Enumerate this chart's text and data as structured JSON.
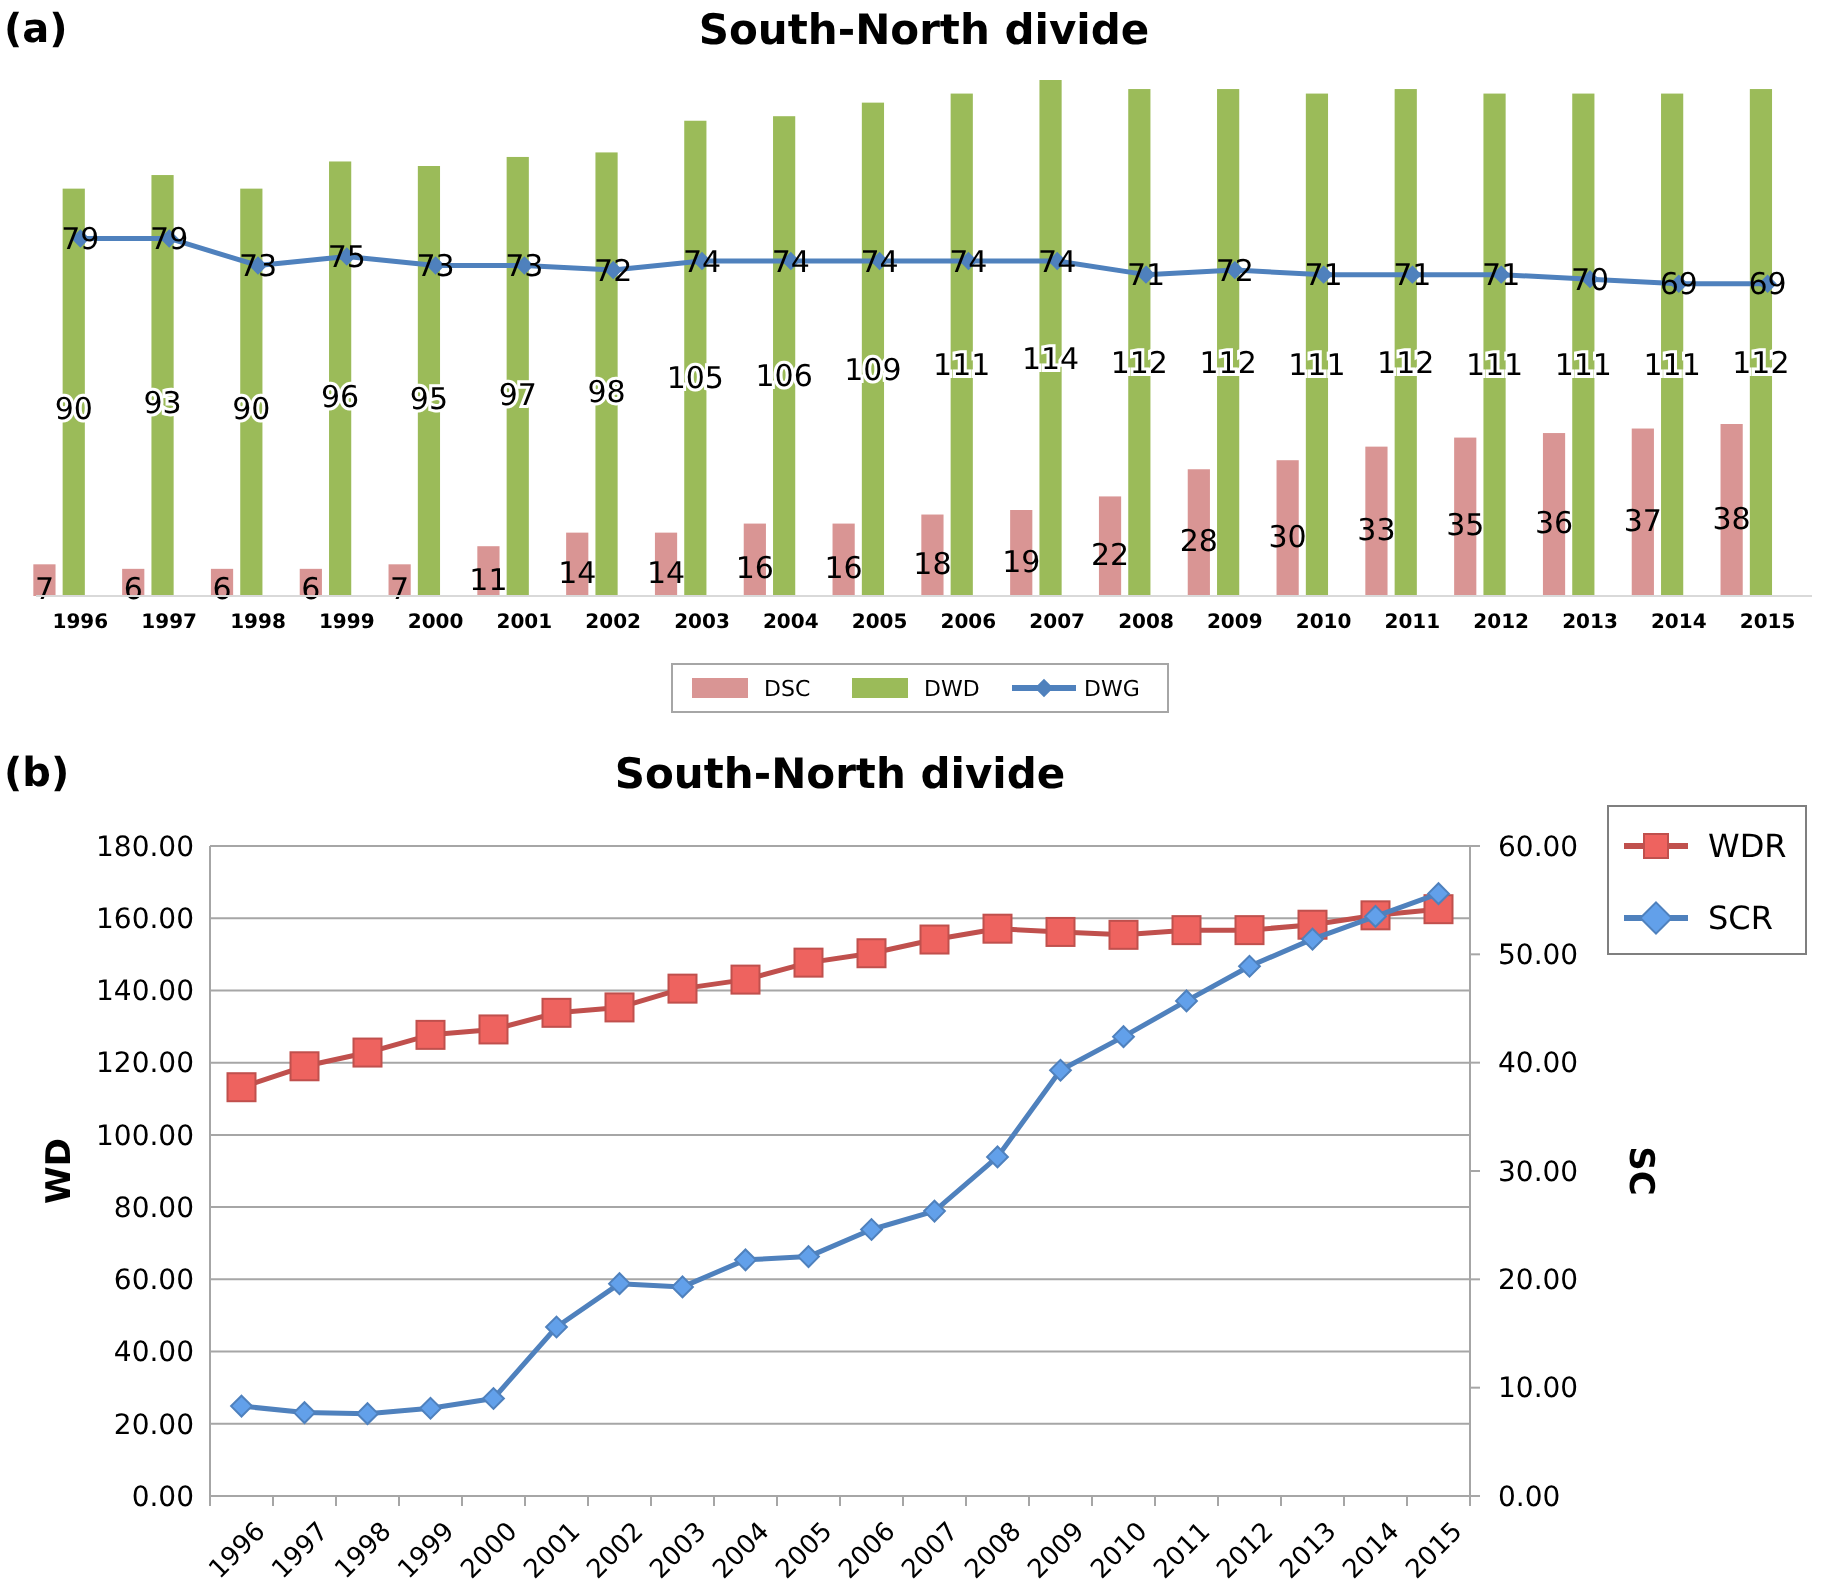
{
  "chart_data": [
    {
      "type": "bar",
      "title": "South-North divide",
      "annotations": [
        "(a)"
      ],
      "categories": [
        "1996",
        "1997",
        "1998",
        "1999",
        "2000",
        "2001",
        "2002",
        "2003",
        "2004",
        "2005",
        "2006",
        "2007",
        "2008",
        "2009",
        "2010",
        "2011",
        "2012",
        "2013",
        "2014",
        "2015"
      ],
      "series": [
        {
          "name": "DSC",
          "color": "#d99594",
          "values": [
            7,
            6,
            6,
            6,
            7,
            11,
            14,
            14,
            16,
            16,
            18,
            19,
            22,
            28,
            30,
            33,
            35,
            36,
            37,
            38
          ]
        },
        {
          "name": "DWD",
          "color": "#9bbb59",
          "values": [
            90,
            93,
            90,
            96,
            95,
            97,
            98,
            105,
            106,
            109,
            111,
            114,
            112,
            112,
            111,
            112,
            111,
            111,
            111,
            112
          ]
        },
        {
          "name": "DWG",
          "type": "line",
          "color": "#4f81bd",
          "marker": "diamond",
          "values": [
            79,
            79,
            73,
            75,
            73,
            73,
            72,
            74,
            74,
            74,
            74,
            74,
            71,
            72,
            71,
            71,
            71,
            70,
            69,
            69
          ]
        }
      ],
      "data_labels": true,
      "legend": "bottom",
      "tick_labels": "x",
      "grid": false
    },
    {
      "type": "line",
      "title": "South-North divide",
      "annotations": [
        "(b)"
      ],
      "ylabel": "WD",
      "y2label": "SC",
      "categories": [
        "1996",
        "1997",
        "1998",
        "1999",
        "2000",
        "2001",
        "2002",
        "2003",
        "2004",
        "2005",
        "2006",
        "2007",
        "2008",
        "2009",
        "2010",
        "2011",
        "2012",
        "2013",
        "2014",
        "2015"
      ],
      "series": [
        {
          "name": "WDR",
          "color": "#c0504d",
          "marker": "square",
          "values": [
            113.2,
            119,
            122.8,
            127.7,
            129.2,
            133.8,
            135.3,
            140.5,
            143,
            147.7,
            150.3,
            154.1,
            157.1,
            156.2,
            155.4,
            156.7,
            156.7,
            158.2,
            160.8,
            162.5
          ]
        },
        {
          "name": "SCR",
          "color": "#4f81bd",
          "marker": "diamond",
          "axis": "y2",
          "values": [
            8.3,
            7.7,
            7.6,
            8.1,
            9.0,
            15.6,
            19.6,
            19.3,
            21.8,
            22.1,
            24.6,
            26.3,
            31.3,
            39.3,
            42.4,
            45.7,
            48.9,
            51.4,
            53.5,
            55.6
          ]
        }
      ],
      "ylim": [
        0,
        180
      ],
      "yticks": [
        {
          "value": 0,
          "label": "0.00"
        },
        {
          "value": 20,
          "label": "20.00"
        },
        {
          "value": 40,
          "label": "40.00"
        },
        {
          "value": 60,
          "label": "60.00"
        },
        {
          "value": 80,
          "label": "80.00"
        },
        {
          "value": 100,
          "label": "100.00"
        },
        {
          "value": 120,
          "label": "120.00"
        },
        {
          "value": 140,
          "label": "140.00"
        },
        {
          "value": 160,
          "label": "160.00"
        },
        {
          "value": 180,
          "label": "180.00"
        }
      ],
      "y2lim": [
        0,
        60
      ],
      "y2ticks": [
        {
          "value": 0,
          "label": "0.00"
        },
        {
          "value": 10,
          "label": "10.00"
        },
        {
          "value": 20,
          "label": "20.00"
        },
        {
          "value": 30,
          "label": "30.00"
        },
        {
          "value": 40,
          "label": "40.00"
        },
        {
          "value": 50,
          "label": "50.00"
        },
        {
          "value": 60,
          "label": "60.00"
        }
      ],
      "grid": "y",
      "legend": "right"
    }
  ]
}
